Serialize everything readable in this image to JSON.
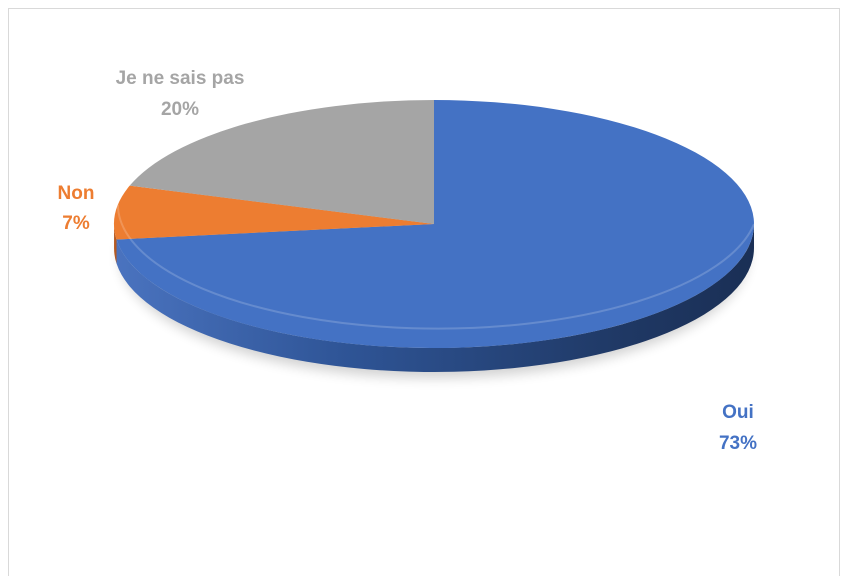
{
  "chart_data": {
    "type": "pie",
    "style": "3d",
    "title": "",
    "slices": [
      {
        "label": "Oui",
        "value": 73,
        "value_label": "73%",
        "color": "#4472c4"
      },
      {
        "label": "Non",
        "value": 7,
        "value_label": "7%",
        "color": "#ed7d31"
      },
      {
        "label": "Je ne sais pas",
        "value": 20,
        "value_label": "20%",
        "color": "#a5a5a5"
      }
    ],
    "label_colors": {
      "Oui": "#4472c4",
      "Non": "#ed7d31",
      "Je ne sais pas": "#a5a5a5"
    },
    "legend": "none"
  }
}
